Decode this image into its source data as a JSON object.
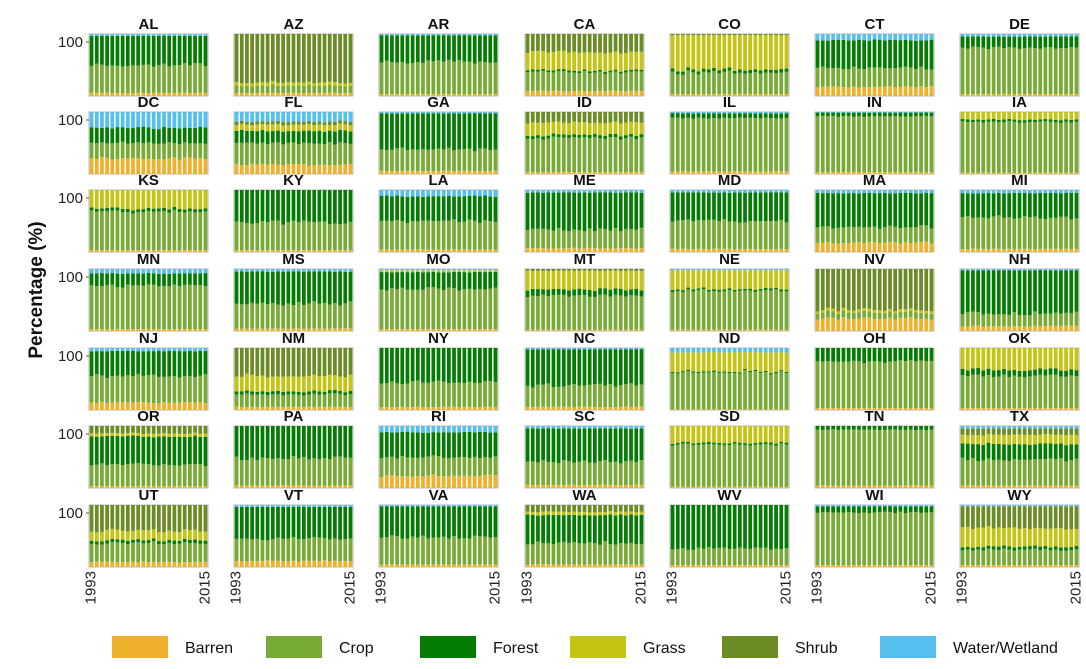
{
  "chart_data": {
    "type": "stacked-bar-small-multiples",
    "ylabel": "Percentage (%)",
    "y_tick_labels": [
      "100"
    ],
    "x_tick_labels": [
      "1993",
      "2015"
    ],
    "x": [
      1993,
      1994,
      1995,
      1996,
      1997,
      1998,
      1999,
      2000,
      2001,
      2002,
      2003,
      2004,
      2005,
      2006,
      2007,
      2008,
      2009,
      2010,
      2011,
      2012,
      2013,
      2014,
      2015
    ],
    "ylim": [
      0,
      100
    ],
    "stack_order": [
      "Barren",
      "Crop",
      "Forest",
      "Grass",
      "Shrub",
      "Water/Wetland"
    ],
    "legend": [
      {
        "name": "Barren",
        "color": "#efb12c"
      },
      {
        "name": "Crop",
        "color": "#77ab35"
      },
      {
        "name": "Forest",
        "color": "#047c04"
      },
      {
        "name": "Grass",
        "color": "#c4c412"
      },
      {
        "name": "Shrub",
        "color": "#6b8b24"
      },
      {
        "name": "Water/Wetland",
        "color": "#55c0ef"
      }
    ],
    "legend_position": "bottom",
    "grid": "off",
    "panels": [
      {
        "state": "AL",
        "barren": 5,
        "crop": 45,
        "forest": 47,
        "grass": 0,
        "shrub": 0,
        "water": 3
      },
      {
        "state": "AZ",
        "barren": 5,
        "crop": 12,
        "forest": 0,
        "grass": 5,
        "shrub": 78,
        "water": 0
      },
      {
        "state": "AR",
        "barren": 3,
        "crop": 52,
        "forest": 43,
        "grass": 0,
        "shrub": 0,
        "water": 2
      },
      {
        "state": "CA",
        "barren": 8,
        "crop": 30,
        "forest": 3,
        "grass": 30,
        "shrub": 29,
        "water": 0
      },
      {
        "state": "CO",
        "barren": 3,
        "crop": 35,
        "forest": 5,
        "grass": 55,
        "shrub": 2,
        "water": 0
      },
      {
        "state": "CT",
        "barren": 15,
        "crop": 30,
        "forest": 45,
        "grass": 0,
        "shrub": 0,
        "water": 10
      },
      {
        "state": "DE",
        "barren": 3,
        "crop": 75,
        "forest": 18,
        "grass": 0,
        "shrub": 0,
        "water": 4
      },
      {
        "state": "DC",
        "barren": 25,
        "crop": 25,
        "forest": 25,
        "grass": 0,
        "shrub": 0,
        "water": 25
      },
      {
        "state": "FL",
        "barren": 15,
        "crop": 35,
        "forest": 20,
        "grass": 10,
        "shrub": 5,
        "water": 15
      },
      {
        "state": "GA",
        "barren": 5,
        "crop": 35,
        "forest": 58,
        "grass": 0,
        "shrub": 0,
        "water": 2
      },
      {
        "state": "ID",
        "barren": 3,
        "crop": 55,
        "forest": 5,
        "grass": 20,
        "shrub": 17,
        "water": 0
      },
      {
        "state": "IL",
        "barren": 4,
        "crop": 86,
        "forest": 8,
        "grass": 0,
        "shrub": 0,
        "water": 2
      },
      {
        "state": "IN",
        "barren": 3,
        "crop": 90,
        "forest": 6,
        "grass": 0,
        "shrub": 0,
        "water": 1
      },
      {
        "state": "IA",
        "barren": 2,
        "crop": 82,
        "forest": 4,
        "grass": 12,
        "shrub": 0,
        "water": 0
      },
      {
        "state": "KS",
        "barren": 3,
        "crop": 62,
        "forest": 5,
        "grass": 30,
        "shrub": 0,
        "water": 0
      },
      {
        "state": "KY",
        "barren": 3,
        "crop": 45,
        "forest": 52,
        "grass": 0,
        "shrub": 0,
        "water": 0
      },
      {
        "state": "LA",
        "barren": 4,
        "crop": 46,
        "forest": 40,
        "grass": 0,
        "shrub": 0,
        "water": 10
      },
      {
        "state": "ME",
        "barren": 6,
        "crop": 30,
        "forest": 60,
        "grass": 0,
        "shrub": 0,
        "water": 4
      },
      {
        "state": "MD",
        "barren": 5,
        "crop": 45,
        "forest": 46,
        "grass": 0,
        "shrub": 0,
        "water": 4
      },
      {
        "state": "MA",
        "barren": 15,
        "crop": 25,
        "forest": 55,
        "grass": 0,
        "shrub": 0,
        "water": 5
      },
      {
        "state": "MI",
        "barren": 5,
        "crop": 50,
        "forest": 40,
        "grass": 0,
        "shrub": 0,
        "water": 5
      },
      {
        "state": "MN",
        "barren": 3,
        "crop": 70,
        "forest": 20,
        "grass": 0,
        "shrub": 0,
        "water": 7
      },
      {
        "state": "MS",
        "barren": 4,
        "crop": 40,
        "forest": 52,
        "grass": 0,
        "shrub": 0,
        "water": 4
      },
      {
        "state": "MO",
        "barren": 3,
        "crop": 65,
        "forest": 27,
        "grass": 3,
        "shrub": 0,
        "water": 2
      },
      {
        "state": "MT",
        "barren": 2,
        "crop": 55,
        "forest": 10,
        "grass": 30,
        "shrub": 3,
        "water": 0
      },
      {
        "state": "NE",
        "barren": 2,
        "crop": 63,
        "forest": 3,
        "grass": 30,
        "shrub": 0,
        "water": 2
      },
      {
        "state": "NV",
        "barren": 20,
        "crop": 10,
        "forest": 0,
        "grass": 4,
        "shrub": 66,
        "water": 0
      },
      {
        "state": "NH",
        "barren": 8,
        "crop": 20,
        "forest": 70,
        "grass": 0,
        "shrub": 0,
        "water": 2
      },
      {
        "state": "NJ",
        "barren": 12,
        "crop": 43,
        "forest": 40,
        "grass": 0,
        "shrub": 0,
        "water": 5
      },
      {
        "state": "NM",
        "barren": 5,
        "crop": 20,
        "forest": 5,
        "grass": 25,
        "shrub": 45,
        "water": 0
      },
      {
        "state": "NY",
        "barren": 5,
        "crop": 40,
        "forest": 55,
        "grass": 0,
        "shrub": 0,
        "water": 0
      },
      {
        "state": "NC",
        "barren": 5,
        "crop": 35,
        "forest": 58,
        "grass": 0,
        "shrub": 0,
        "water": 2
      },
      {
        "state": "ND",
        "barren": 1,
        "crop": 60,
        "forest": 2,
        "grass": 30,
        "shrub": 0,
        "water": 7
      },
      {
        "state": "OH",
        "barren": 3,
        "crop": 75,
        "forest": 22,
        "grass": 0,
        "shrub": 0,
        "water": 0
      },
      {
        "state": "OK",
        "barren": 3,
        "crop": 52,
        "forest": 10,
        "grass": 35,
        "shrub": 0,
        "water": 0
      },
      {
        "state": "OR",
        "barren": 3,
        "crop": 35,
        "forest": 45,
        "grass": 5,
        "shrub": 12,
        "water": 0
      },
      {
        "state": "PA",
        "barren": 4,
        "crop": 44,
        "forest": 52,
        "grass": 0,
        "shrub": 0,
        "water": 0
      },
      {
        "state": "RI",
        "barren": 20,
        "crop": 30,
        "forest": 40,
        "grass": 0,
        "shrub": 0,
        "water": 10
      },
      {
        "state": "SC",
        "barren": 5,
        "crop": 38,
        "forest": 53,
        "grass": 0,
        "shrub": 0,
        "water": 4
      },
      {
        "state": "SD",
        "barren": 2,
        "crop": 68,
        "forest": 3,
        "grass": 27,
        "shrub": 0,
        "water": 0
      },
      {
        "state": "TN",
        "barren": 4,
        "crop": 90,
        "forest": 6,
        "grass": 0,
        "shrub": 0,
        "water": 0
      },
      {
        "state": "TX",
        "barren": 4,
        "crop": 42,
        "forest": 25,
        "grass": 15,
        "shrub": 10,
        "water": 4
      },
      {
        "state": "UT",
        "barren": 8,
        "crop": 30,
        "forest": 5,
        "grass": 15,
        "shrub": 42,
        "water": 0
      },
      {
        "state": "VT",
        "barren": 10,
        "crop": 35,
        "forest": 52,
        "grass": 0,
        "shrub": 0,
        "water": 3
      },
      {
        "state": "VA",
        "barren": 4,
        "crop": 44,
        "forest": 50,
        "grass": 0,
        "shrub": 0,
        "water": 2
      },
      {
        "state": "WA",
        "barren": 4,
        "crop": 35,
        "forest": 45,
        "grass": 5,
        "shrub": 11,
        "water": 0
      },
      {
        "state": "WV",
        "barren": 3,
        "crop": 27,
        "forest": 70,
        "grass": 0,
        "shrub": 0,
        "water": 0
      },
      {
        "state": "WI",
        "barren": 3,
        "crop": 85,
        "forest": 10,
        "grass": 0,
        "shrub": 0,
        "water": 2
      },
      {
        "state": "WY",
        "barren": 3,
        "crop": 25,
        "forest": 5,
        "grass": 30,
        "shrub": 35,
        "water": 2
      }
    ]
  }
}
